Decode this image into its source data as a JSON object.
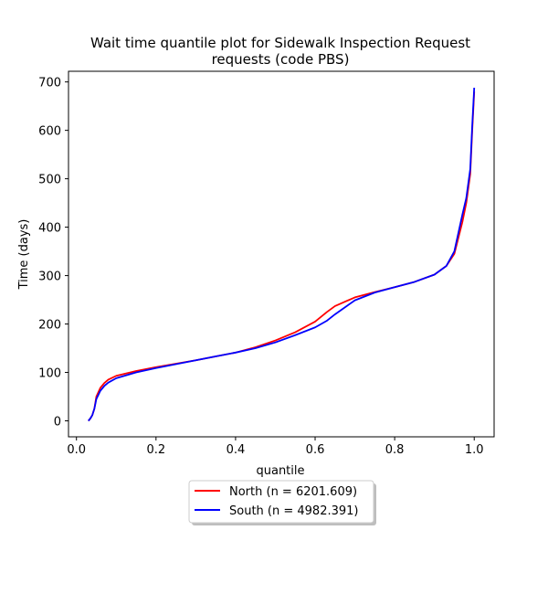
{
  "chart_data": {
    "type": "line",
    "title_line1": "Wait time quantile plot for Sidewalk Inspection Request",
    "title_line2": "requests (code PBS)",
    "xlabel": "quantile",
    "ylabel": "Time (days)",
    "xlim": [
      -0.02,
      1.05
    ],
    "ylim": [
      -33,
      722
    ],
    "xticks": [
      0.0,
      0.2,
      0.4,
      0.6,
      0.8,
      1.0
    ],
    "xtick_labels": [
      "0.0",
      "0.2",
      "0.4",
      "0.6",
      "0.8",
      "1.0"
    ],
    "yticks": [
      0,
      100,
      200,
      300,
      400,
      500,
      600,
      700
    ],
    "ytick_labels": [
      "0",
      "100",
      "200",
      "300",
      "400",
      "500",
      "600",
      "700"
    ],
    "grid": false,
    "legend_position": "bottom-center",
    "series": [
      {
        "name": "North (n = 6201.609)",
        "color": "#ff0000",
        "points": [
          [
            0.03,
            0
          ],
          [
            0.035,
            5
          ],
          [
            0.04,
            12
          ],
          [
            0.045,
            25
          ],
          [
            0.05,
            50
          ],
          [
            0.06,
            68
          ],
          [
            0.07,
            78
          ],
          [
            0.08,
            85
          ],
          [
            0.1,
            93
          ],
          [
            0.15,
            103
          ],
          [
            0.2,
            111
          ],
          [
            0.25,
            118
          ],
          [
            0.3,
            125
          ],
          [
            0.35,
            133
          ],
          [
            0.4,
            141
          ],
          [
            0.45,
            152
          ],
          [
            0.5,
            166
          ],
          [
            0.55,
            183
          ],
          [
            0.6,
            205
          ],
          [
            0.63,
            225
          ],
          [
            0.65,
            237
          ],
          [
            0.7,
            255
          ],
          [
            0.75,
            266
          ],
          [
            0.8,
            276
          ],
          [
            0.85,
            287
          ],
          [
            0.9,
            302
          ],
          [
            0.93,
            320
          ],
          [
            0.95,
            345
          ],
          [
            0.97,
            410
          ],
          [
            0.98,
            450
          ],
          [
            0.99,
            510
          ],
          [
            0.995,
            600
          ],
          [
            1.0,
            680
          ]
        ]
      },
      {
        "name": "South (n = 4982.391)",
        "color": "#0000ff",
        "points": [
          [
            0.03,
            0
          ],
          [
            0.035,
            5
          ],
          [
            0.04,
            12
          ],
          [
            0.045,
            25
          ],
          [
            0.05,
            45
          ],
          [
            0.06,
            62
          ],
          [
            0.07,
            72
          ],
          [
            0.08,
            79
          ],
          [
            0.1,
            88
          ],
          [
            0.15,
            100
          ],
          [
            0.2,
            109
          ],
          [
            0.25,
            117
          ],
          [
            0.3,
            125
          ],
          [
            0.35,
            133
          ],
          [
            0.4,
            141
          ],
          [
            0.45,
            150
          ],
          [
            0.5,
            162
          ],
          [
            0.55,
            177
          ],
          [
            0.6,
            193
          ],
          [
            0.63,
            207
          ],
          [
            0.65,
            220
          ],
          [
            0.7,
            249
          ],
          [
            0.75,
            265
          ],
          [
            0.8,
            276
          ],
          [
            0.85,
            287
          ],
          [
            0.9,
            302
          ],
          [
            0.93,
            320
          ],
          [
            0.95,
            350
          ],
          [
            0.97,
            425
          ],
          [
            0.98,
            460
          ],
          [
            0.99,
            520
          ],
          [
            0.995,
            610
          ],
          [
            1.0,
            688
          ]
        ]
      }
    ]
  }
}
